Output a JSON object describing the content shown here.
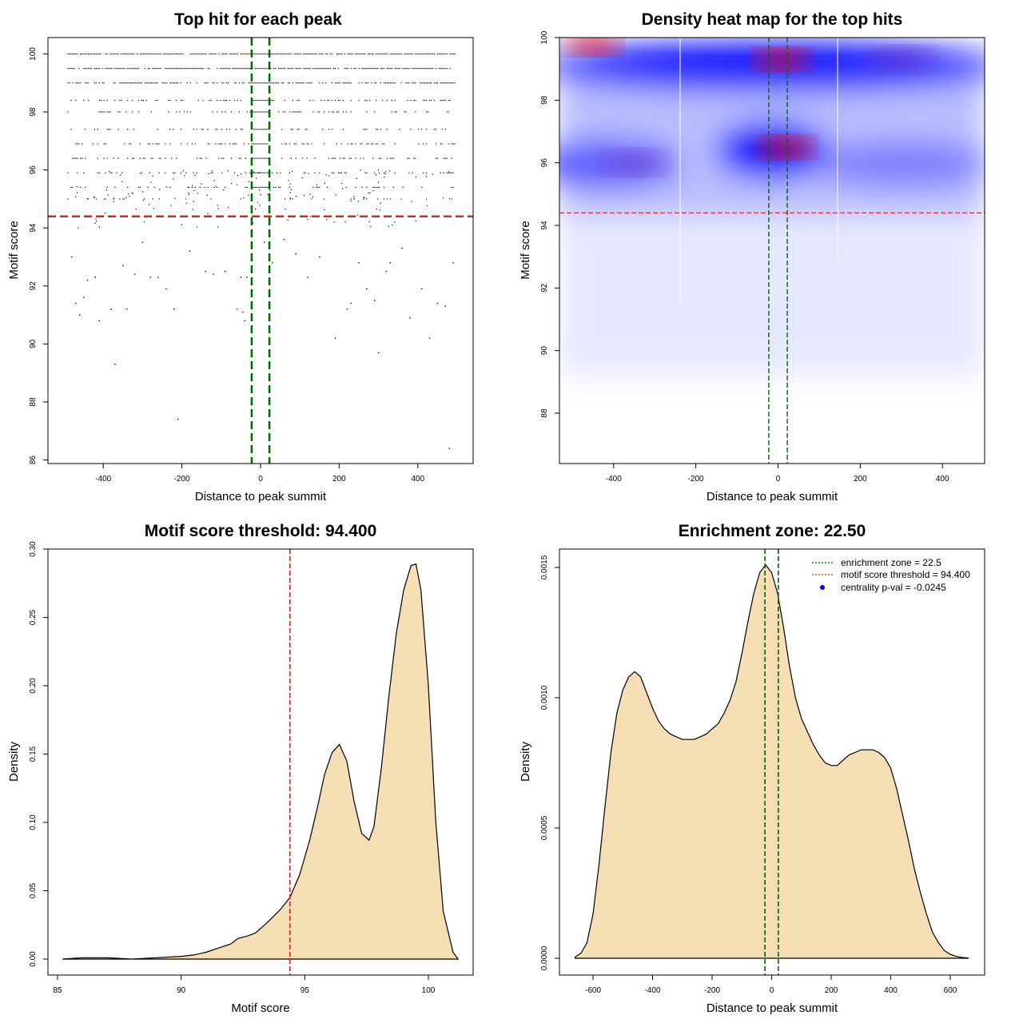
{
  "chart_data": [
    {
      "type": "scatter",
      "title": "Top hit for each peak",
      "xlabel": "Distance to peak summit",
      "ylabel": "Motif score",
      "xlim": [
        -500,
        500
      ],
      "ylim": [
        86,
        100
      ],
      "xticks": [
        "-400",
        "-200",
        "0",
        "200",
        "400"
      ],
      "yticks": [
        "86",
        "88",
        "90",
        "92",
        "94",
        "96",
        "98",
        "100"
      ],
      "score_levels": [
        100,
        99.5,
        99,
        98.4,
        98,
        97.4,
        96.9,
        96.4,
        95.9,
        95.4,
        95
      ],
      "threshold_line": {
        "y": 94.4,
        "color": "#dd2222",
        "style": "dashed"
      },
      "zone_lines": {
        "x": [
          -22.5,
          22.5
        ],
        "color": "#006600",
        "style": "dashed"
      },
      "low_points": [
        {
          "x": -480,
          "y": 93.0
        },
        {
          "x": -470,
          "y": 91.4
        },
        {
          "x": -460,
          "y": 91.0
        },
        {
          "x": -450,
          "y": 91.6
        },
        {
          "x": -440,
          "y": 92.2
        },
        {
          "x": -420,
          "y": 92.3
        },
        {
          "x": -410,
          "y": 90.8
        },
        {
          "x": -380,
          "y": 91.2
        },
        {
          "x": -370,
          "y": 89.3
        },
        {
          "x": -350,
          "y": 92.7
        },
        {
          "x": -340,
          "y": 91.2
        },
        {
          "x": -320,
          "y": 92.4
        },
        {
          "x": -300,
          "y": 93.5
        },
        {
          "x": -280,
          "y": 92.3
        },
        {
          "x": -260,
          "y": 92.3
        },
        {
          "x": -240,
          "y": 91.9
        },
        {
          "x": -220,
          "y": 91.2
        },
        {
          "x": -210,
          "y": 87.4
        },
        {
          "x": -180,
          "y": 93.2
        },
        {
          "x": -140,
          "y": 92.5
        },
        {
          "x": -120,
          "y": 92.4
        },
        {
          "x": -90,
          "y": 92.5
        },
        {
          "x": -60,
          "y": 91.2
        },
        {
          "x": -50,
          "y": 92.3
        },
        {
          "x": -45,
          "y": 91.1
        },
        {
          "x": -40,
          "y": 90.8
        },
        {
          "x": -35,
          "y": 92.3
        },
        {
          "x": 10,
          "y": 93.5
        },
        {
          "x": 30,
          "y": 92.8
        },
        {
          "x": 60,
          "y": 93.6
        },
        {
          "x": 90,
          "y": 93.1
        },
        {
          "x": 120,
          "y": 92.3
        },
        {
          "x": 150,
          "y": 93.0
        },
        {
          "x": 190,
          "y": 90.2
        },
        {
          "x": 220,
          "y": 91.2
        },
        {
          "x": 230,
          "y": 91.4
        },
        {
          "x": 250,
          "y": 92.8
        },
        {
          "x": 270,
          "y": 91.9
        },
        {
          "x": 290,
          "y": 91.5
        },
        {
          "x": 300,
          "y": 89.7
        },
        {
          "x": 320,
          "y": 92.5
        },
        {
          "x": 330,
          "y": 92.8
        },
        {
          "x": 360,
          "y": 93.3
        },
        {
          "x": 380,
          "y": 90.9
        },
        {
          "x": 410,
          "y": 91.9
        },
        {
          "x": 430,
          "y": 90.2
        },
        {
          "x": 450,
          "y": 91.4
        },
        {
          "x": 470,
          "y": 91.3
        },
        {
          "x": 480,
          "y": 86.4
        },
        {
          "x": 490,
          "y": 92.8
        }
      ]
    },
    {
      "type": "heatmap",
      "title": "Density heat map for the top hits",
      "xlabel": "Distance to peak summit",
      "ylabel": "Motif score",
      "xlim": [
        -500,
        500
      ],
      "ylim": [
        86.3,
        100
      ],
      "xticks": [
        "-400",
        "-200",
        "0",
        "200",
        "400"
      ],
      "yticks": [
        "88",
        "90",
        "92",
        "94",
        "96",
        "98",
        "100"
      ],
      "colors": [
        "#ffffff",
        "#0000ff",
        "#ff0000"
      ],
      "threshold_line": {
        "y": 94.4,
        "color": "#dd2222",
        "style": "dashed"
      },
      "zone_lines": {
        "x": [
          -22.5,
          22.5
        ],
        "color": "#006600",
        "style": "dashed"
      },
      "hotspots": [
        {
          "x": -450,
          "y": 99.8,
          "level": "high"
        },
        {
          "x": 10,
          "y": 99.3,
          "level": "high"
        },
        {
          "x": 20,
          "y": 96.5,
          "level": "high"
        },
        {
          "x": -350,
          "y": 96.0,
          "level": "medium"
        },
        {
          "x": 300,
          "y": 99.3,
          "level": "medium"
        }
      ]
    },
    {
      "type": "area",
      "title": "Motif score threshold: 94.400",
      "xlabel": "Motif score",
      "ylabel": "Density",
      "xlim": [
        85,
        101.5
      ],
      "ylim": [
        0,
        0.3
      ],
      "xticks": [
        "85",
        "90",
        "95",
        "100"
      ],
      "yticks": [
        "0.00",
        "0.05",
        "0.10",
        "0.15",
        "0.20",
        "0.25",
        "0.30"
      ],
      "fill_color": "#f5deb3",
      "threshold_line": {
        "x": 94.4,
        "color": "#dd2222",
        "style": "dashed"
      },
      "x": [
        85.2,
        86,
        87,
        88,
        89,
        90,
        90.5,
        91,
        91.5,
        92,
        92.3,
        92.7,
        93,
        93.5,
        94,
        94.4,
        94.8,
        95.2,
        95.5,
        95.8,
        96.1,
        96.4,
        96.7,
        97,
        97.3,
        97.6,
        97.8,
        98.1,
        98.4,
        98.7,
        99,
        99.3,
        99.5,
        99.7,
        100,
        100.3,
        100.6,
        101,
        101.2
      ],
      "y": [
        0.0,
        0.001,
        0.001,
        0.0,
        0.001,
        0.002,
        0.003,
        0.005,
        0.008,
        0.011,
        0.015,
        0.017,
        0.019,
        0.027,
        0.036,
        0.045,
        0.062,
        0.087,
        0.11,
        0.135,
        0.151,
        0.157,
        0.145,
        0.115,
        0.092,
        0.087,
        0.097,
        0.14,
        0.192,
        0.238,
        0.27,
        0.288,
        0.289,
        0.27,
        0.2,
        0.1,
        0.035,
        0.005,
        0.0
      ]
    },
    {
      "type": "area",
      "title": "Enrichment zone: 22.50",
      "xlabel": "Distance to peak summit",
      "ylabel": "Density",
      "xlim": [
        -660,
        665
      ],
      "ylim": [
        0,
        0.0015
      ],
      "xticks": [
        "-600",
        "-400",
        "-200",
        "0",
        "200",
        "400",
        "600"
      ],
      "yticks": [
        "0.0000",
        "0.0005",
        "0.0010",
        "0.0015"
      ],
      "fill_color": "#f5deb3",
      "zone_lines": {
        "x": [
          -22.5,
          22.5
        ],
        "color": "#006600",
        "style": "dashed"
      },
      "legend": {
        "position": "top-right",
        "entries": [
          {
            "label": "enrichment zone = 22.5",
            "color": "#006600",
            "style": "dotted-line"
          },
          {
            "label": "motif score threshold = 94.400",
            "color": "#dd2222",
            "style": "dotted-line"
          },
          {
            "label": "centrality p-val = -0.0245",
            "color": "#0000ff",
            "style": "point"
          }
        ]
      },
      "x": [
        -660,
        -640,
        -620,
        -600,
        -580,
        -560,
        -540,
        -520,
        -500,
        -480,
        -460,
        -440,
        -420,
        -400,
        -380,
        -360,
        -340,
        -320,
        -300,
        -280,
        -260,
        -240,
        -220,
        -200,
        -180,
        -160,
        -140,
        -120,
        -100,
        -80,
        -60,
        -40,
        -20,
        0,
        20,
        40,
        60,
        80,
        100,
        120,
        140,
        160,
        180,
        200,
        220,
        240,
        260,
        280,
        300,
        320,
        340,
        360,
        380,
        400,
        420,
        440,
        460,
        480,
        500,
        520,
        540,
        560,
        580,
        600,
        620,
        640,
        660
      ],
      "y": [
        5e-06,
        2e-05,
        6e-05,
        0.00017,
        0.00036,
        0.00058,
        0.00079,
        0.00094,
        0.00103,
        0.00108,
        0.0011,
        0.00108,
        0.00102,
        0.00096,
        0.00091,
        0.00088,
        0.00086,
        0.00085,
        0.00084,
        0.00084,
        0.00084,
        0.00085,
        0.00086,
        0.00088,
        0.0009,
        0.00094,
        0.00099,
        0.00106,
        0.00117,
        0.00129,
        0.0014,
        0.00148,
        0.00151,
        0.00148,
        0.0014,
        0.00127,
        0.00112,
        0.001,
        0.00092,
        0.00087,
        0.00082,
        0.00078,
        0.00075,
        0.00074,
        0.00074,
        0.00076,
        0.00078,
        0.00079,
        0.0008,
        0.0008,
        0.0008,
        0.00079,
        0.00077,
        0.00073,
        0.00065,
        0.00055,
        0.00045,
        0.00034,
        0.00025,
        0.00017,
        0.0001,
        6e-05,
        3e-05,
        1.5e-05,
        7e-06,
        3e-06,
        1e-06
      ]
    }
  ]
}
